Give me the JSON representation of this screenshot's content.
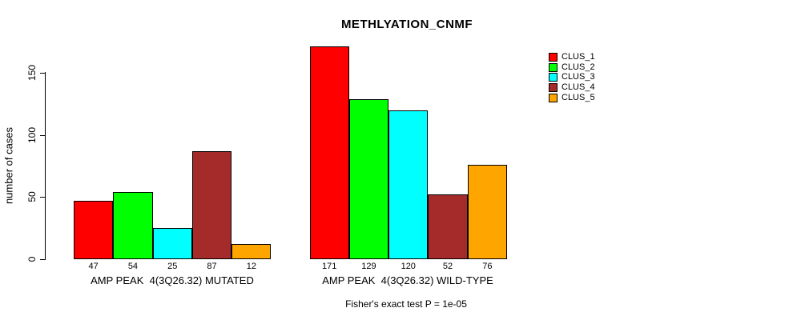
{
  "chart_data": {
    "type": "bar",
    "title": "METHLYATION_CNMF",
    "ylabel": "number of cases",
    "xlabel": "",
    "yticks": [
      0,
      50,
      100,
      150
    ],
    "ylim": [
      0,
      175
    ],
    "grid": false,
    "legend_position": "right-inside-top",
    "bar_value_labels": true,
    "bar_border_color": "#000000",
    "background_color": "#FFFFFF",
    "categories": [
      "AMP PEAK  4(3Q26.32) MUTATED",
      "AMP PEAK  4(3Q26.32) WILD-TYPE"
    ],
    "series": [
      {
        "name": "CLUS_1",
        "color": "#FF0000",
        "values": [
          47,
          171
        ]
      },
      {
        "name": "CLUS_2",
        "color": "#00FF00",
        "values": [
          54,
          129
        ]
      },
      {
        "name": "CLUS_3",
        "color": "#00FFFF",
        "values": [
          25,
          120
        ]
      },
      {
        "name": "CLUS_4",
        "color": "#A52A2A",
        "values": [
          87,
          52
        ]
      },
      {
        "name": "CLUS_5",
        "color": "#FFA500",
        "values": [
          12,
          76
        ]
      }
    ],
    "annotation": "Fisher's exact test P = 1e-05"
  }
}
